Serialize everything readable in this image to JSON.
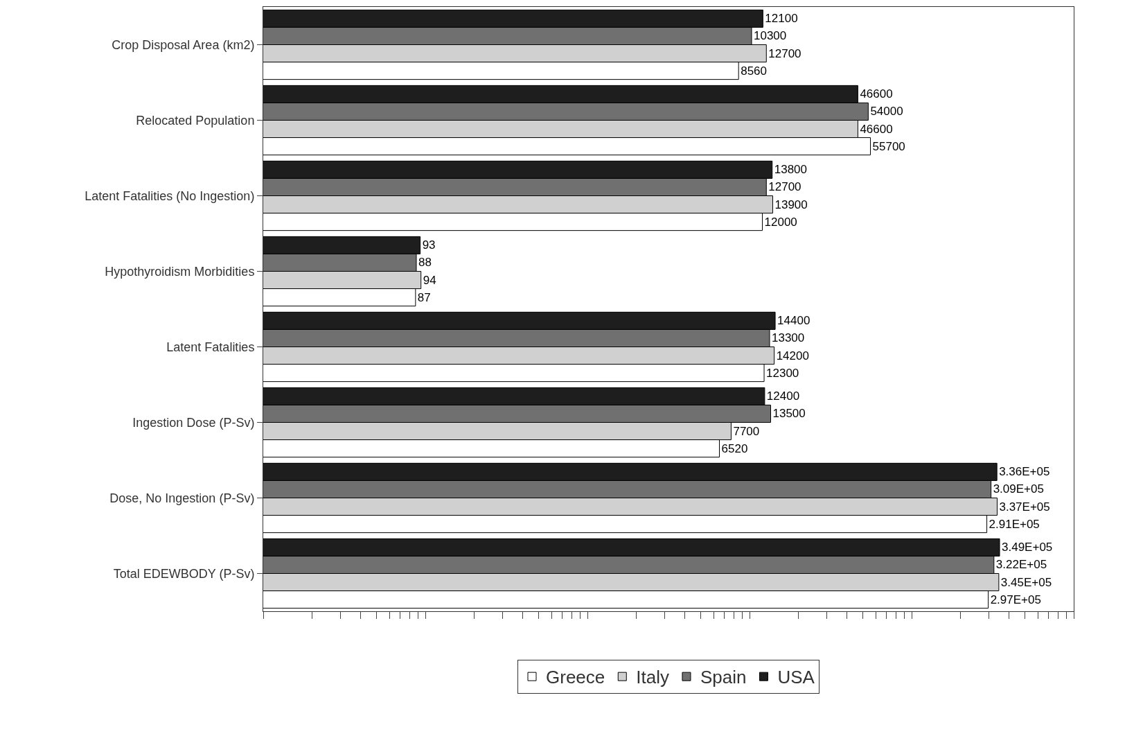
{
  "chart_data": {
    "type": "bar",
    "orientation": "horizontal",
    "log": "x",
    "tick_labels": "y",
    "grid": false,
    "legend": "bottom",
    "categories": [
      "Crop Disposal Area (km2)",
      "Relocated Population",
      "Latent Fatalities (No Ingestion)",
      "Hypothyroidism Morbidities",
      "Latent Fatalities",
      "Ingestion Dose (P-Sv)",
      "Dose, No Ingestion (P-Sv)",
      "Total EDEWBODY (P-Sv)"
    ],
    "xlim": [
      10,
      1000000
    ],
    "xticks": [
      {
        "value": 10,
        "label": null
      },
      {
        "value": 20,
        "label": null
      },
      {
        "value": 30,
        "label": null
      },
      {
        "value": 40,
        "label": null
      },
      {
        "value": 50,
        "label": null
      },
      {
        "value": 60,
        "label": null
      },
      {
        "value": 70,
        "label": null
      },
      {
        "value": 80,
        "label": null
      },
      {
        "value": 90,
        "label": null
      },
      {
        "value": 100,
        "label": null
      },
      {
        "value": 200,
        "label": null
      },
      {
        "value": 300,
        "label": null
      },
      {
        "value": 400,
        "label": null
      },
      {
        "value": 500,
        "label": null
      },
      {
        "value": 600,
        "label": null
      },
      {
        "value": 700,
        "label": null
      },
      {
        "value": 800,
        "label": null
      },
      {
        "value": 900,
        "label": null
      },
      {
        "value": 1000,
        "label": null
      },
      {
        "value": 2000,
        "label": null
      },
      {
        "value": 3000,
        "label": null
      },
      {
        "value": 4000,
        "label": null
      },
      {
        "value": 5000,
        "label": null
      },
      {
        "value": 6000,
        "label": null
      },
      {
        "value": 7000,
        "label": null
      },
      {
        "value": 8000,
        "label": null
      },
      {
        "value": 9000,
        "label": null
      },
      {
        "value": 10000,
        "label": null
      },
      {
        "value": 20000,
        "label": null
      },
      {
        "value": 30000,
        "label": null
      },
      {
        "value": 40000,
        "label": null
      },
      {
        "value": 50000,
        "label": null
      },
      {
        "value": 60000,
        "label": null
      },
      {
        "value": 70000,
        "label": null
      },
      {
        "value": 80000,
        "label": null
      },
      {
        "value": 90000,
        "label": null
      },
      {
        "value": 100000,
        "label": null
      },
      {
        "value": 200000,
        "label": null
      },
      {
        "value": 300000,
        "label": null
      },
      {
        "value": 400000,
        "label": null
      },
      {
        "value": 500000,
        "label": null
      },
      {
        "value": 600000,
        "label": null
      },
      {
        "value": 700000,
        "label": null
      },
      {
        "value": 800000,
        "label": null
      },
      {
        "value": 900000,
        "label": null
      },
      {
        "value": 1000000,
        "label": null
      }
    ],
    "series": [
      {
        "name": "Greece",
        "color": "#ffffff",
        "values": [
          8560,
          55700,
          12000,
          87,
          12300,
          6520,
          291000,
          297000
        ],
        "value_labels": [
          "8560",
          "55700",
          "12000",
          "87",
          "12300",
          "6520",
          "2.91E+05",
          "2.97E+05"
        ]
      },
      {
        "name": "Italy",
        "color": "#d0d0d0",
        "values": [
          12700,
          46600,
          13900,
          94,
          14200,
          7700,
          337000,
          345000
        ],
        "value_labels": [
          "12700",
          "46600",
          "13900",
          "94",
          "14200",
          "7700",
          "3.37E+05",
          "3.45E+05"
        ]
      },
      {
        "name": "Spain",
        "color": "#707070",
        "values": [
          10300,
          54000,
          12700,
          88,
          13300,
          13500,
          309000,
          322000
        ],
        "value_labels": [
          "10300",
          "54000",
          "12700",
          "88",
          "13300",
          "13500",
          "3.09E+05",
          "3.22E+05"
        ]
      },
      {
        "name": "USA",
        "color": "#1e1e1e",
        "values": [
          12100,
          46600,
          13800,
          93,
          14400,
          12400,
          336000,
          349000
        ],
        "value_labels": [
          "12100",
          "46600",
          "13800",
          "93",
          "14400",
          "12400",
          "3.36E+05",
          "3.49E+05"
        ]
      }
    ]
  }
}
